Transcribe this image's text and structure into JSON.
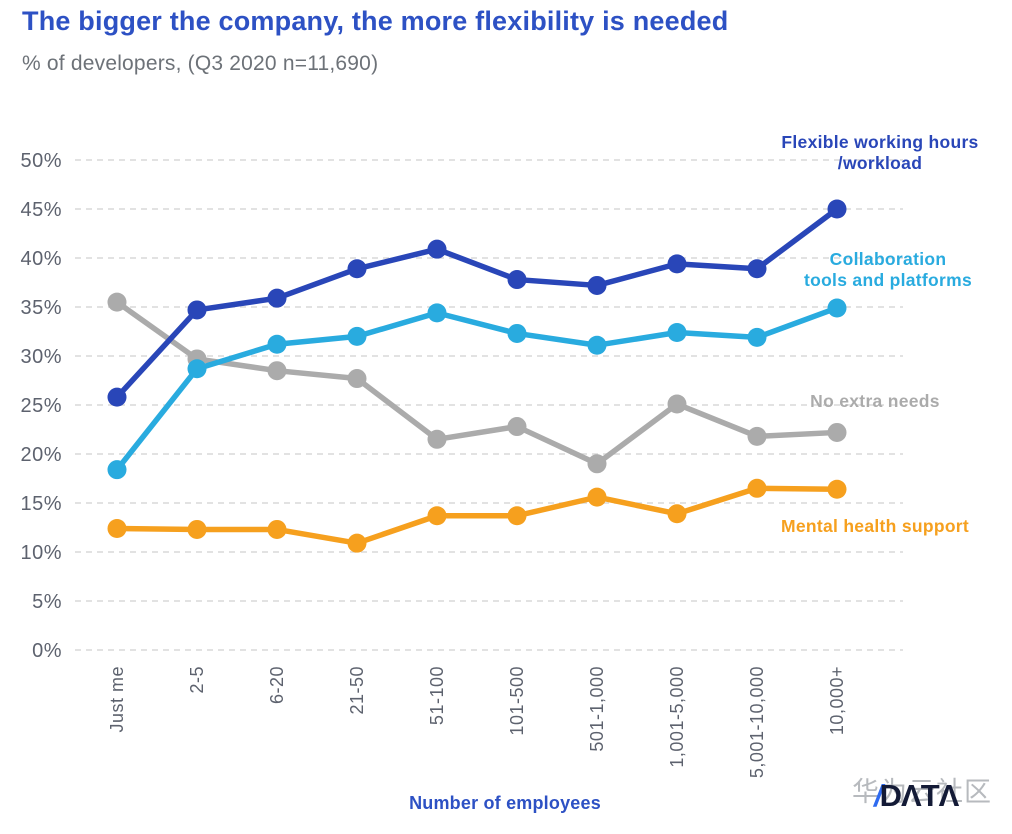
{
  "header": {
    "title": "The bigger the company, the more flexibility is needed",
    "subtitle": "% of developers, (Q3 2020 n=11,690)"
  },
  "colors": {
    "title_blue": "#2d51c4",
    "subtitle_gray": "#6d7278",
    "gridline": "#d8d8d8",
    "ytick_label": "#5d626e",
    "xtick_label": "#5d626e",
    "series_flexible": "#2946b8",
    "series_collab": "#29abdf",
    "series_none": "#ababab",
    "series_mental": "#f6a01e",
    "watermark_gray": "#b7babe",
    "logo_navy": "#131a36",
    "logo_slash_blue": "#2f6bf0"
  },
  "chart_data": {
    "type": "line",
    "title": "The bigger the company, the more flexibility is needed",
    "subtitle": "% of developers, (Q3 2020 n=11,690)",
    "xlabel": "Number of employees",
    "ylabel": "% of developers",
    "ylim": [
      0,
      50
    ],
    "grid": "horizontal-dashed",
    "legend_position": "inline-right",
    "yticks": [
      {
        "value": 0,
        "label": "0%"
      },
      {
        "value": 5,
        "label": "5%"
      },
      {
        "value": 10,
        "label": "10%"
      },
      {
        "value": 15,
        "label": "15%"
      },
      {
        "value": 20,
        "label": "20%"
      },
      {
        "value": 25,
        "label": "25%"
      },
      {
        "value": 30,
        "label": "30%"
      },
      {
        "value": 35,
        "label": "35%"
      },
      {
        "value": 40,
        "label": "40%"
      },
      {
        "value": 45,
        "label": "45%"
      },
      {
        "value": 50,
        "label": "50%"
      }
    ],
    "categories": [
      "Just me",
      "2-5",
      "6-20",
      "21-50",
      "51-100",
      "101-500",
      "501-1,000",
      "1,001-5,000",
      "5,001-10,000",
      "10,000+"
    ],
    "series": [
      {
        "name": "Flexible working hours /workload",
        "label_lines": [
          "Flexible working hours",
          "/workload"
        ],
        "color": "#2946b8",
        "values": [
          25.8,
          34.7,
          35.9,
          38.9,
          40.9,
          37.8,
          37.2,
          39.4,
          38.9,
          45.0
        ]
      },
      {
        "name": "Collaboration tools and platforms",
        "label_lines": [
          "Collaboration",
          "tools and platforms"
        ],
        "color": "#29abdf",
        "values": [
          18.4,
          28.7,
          31.2,
          32.0,
          34.4,
          32.3,
          31.1,
          32.4,
          31.9,
          34.9
        ]
      },
      {
        "name": "No extra needs",
        "label_lines": [
          "No extra needs"
        ],
        "color": "#ababab",
        "values": [
          35.5,
          29.7,
          28.5,
          27.7,
          21.5,
          22.8,
          19.0,
          25.1,
          21.8,
          22.2
        ]
      },
      {
        "name": "Mental health support",
        "label_lines": [
          "Mental health support"
        ],
        "color": "#f6a01e",
        "values": [
          12.4,
          12.3,
          12.3,
          10.9,
          13.7,
          13.7,
          15.6,
          13.9,
          16.5,
          16.4
        ]
      }
    ]
  },
  "footer": {
    "xaxis_title": "Number of employees",
    "watermark": "华为云社区",
    "logo_slash": "/",
    "logo_text": "DΛTΛ"
  }
}
